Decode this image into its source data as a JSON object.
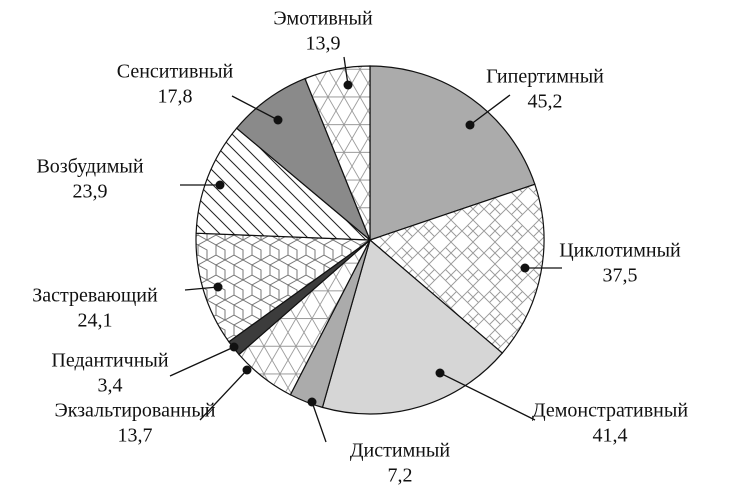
{
  "chart_data": {
    "type": "pie",
    "categories": [
      "Гипертимный",
      "Циклотимный",
      "Демонстративный",
      "Дистимный",
      "Экзальтированный",
      "Педантичный",
      "Застревающий",
      "Возбудимый",
      "Сенситивный",
      "Эмотивный"
    ],
    "values": [
      45.2,
      37.5,
      41.4,
      7.2,
      13.7,
      3.4,
      24.1,
      23.9,
      17.8,
      13.9
    ],
    "value_labels": [
      "45,2",
      "37,5",
      "41,4",
      "7,2",
      "13,7",
      "3,4",
      "24,1",
      "23,9",
      "17,8",
      "13,9"
    ],
    "colors": [
      "#ababab",
      "url(#pat-tile)",
      "#d6d6d6",
      "#ababab",
      "url(#pat-tri)",
      "#3c3c3c",
      "url(#pat-hex)",
      "url(#pat-hatch)",
      "#8a8a8a",
      "url(#pat-tri)"
    ]
  }
}
